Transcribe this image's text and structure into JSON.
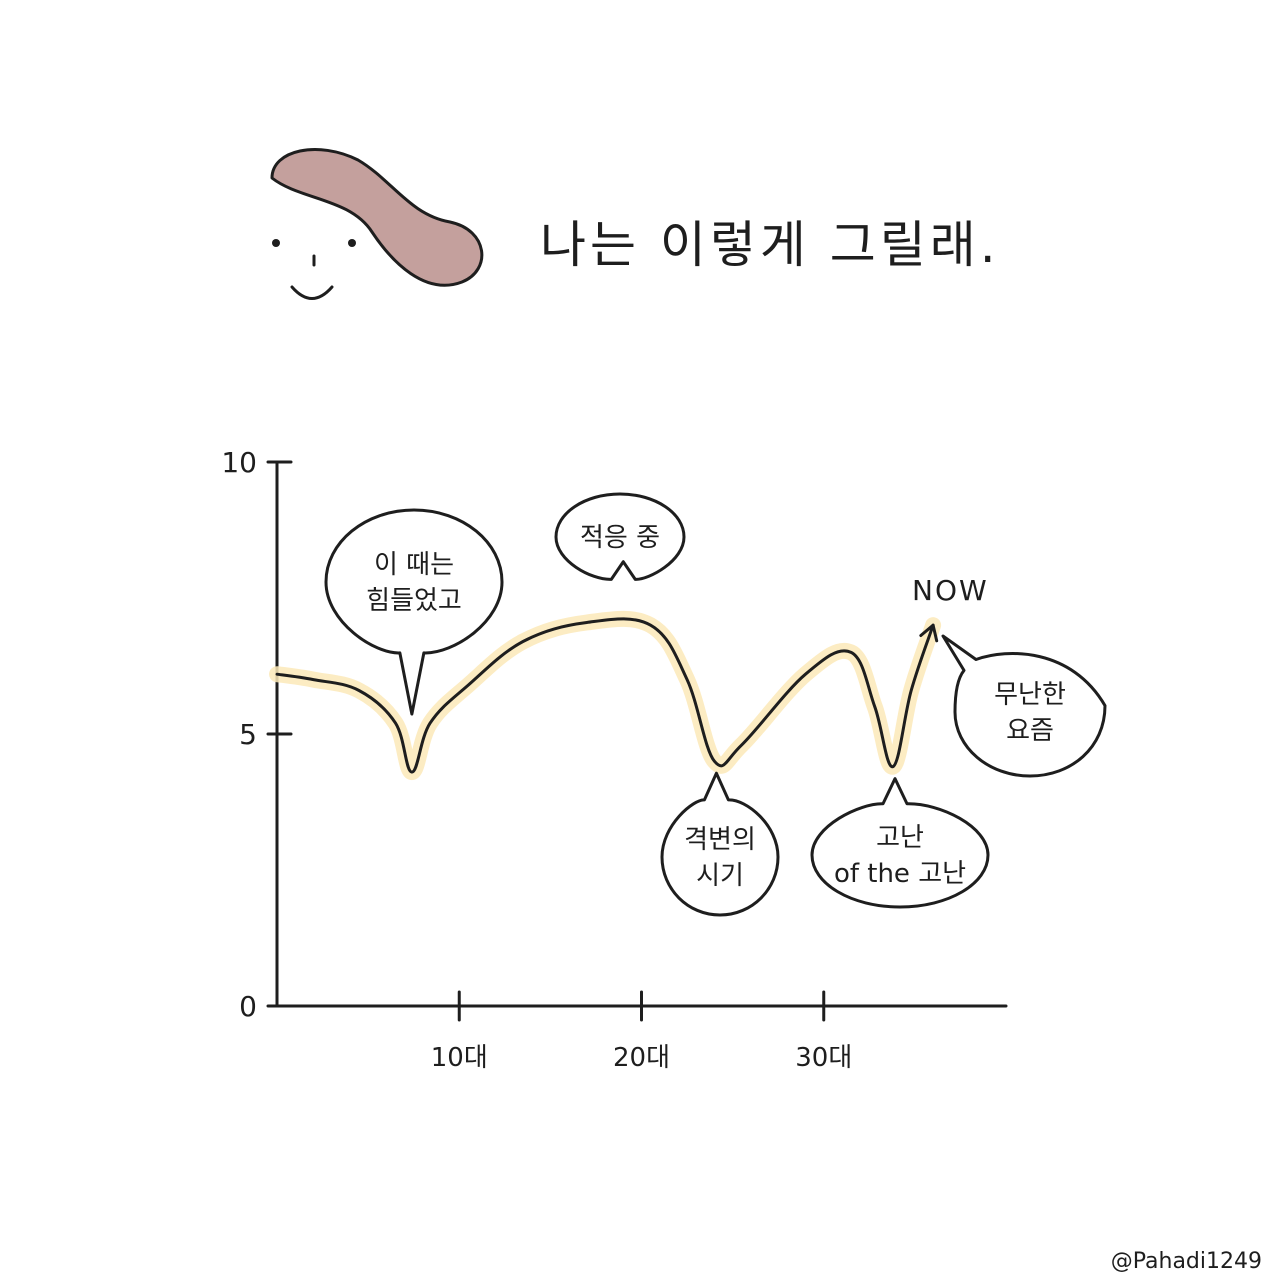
{
  "title": "나는 이렇게 그릴래.",
  "signature": "@Pahadi1249",
  "colors": {
    "ink": "#1e1e1e",
    "hair": "#c4a09d",
    "glow": "#fbe9b8"
  },
  "icons": {
    "avatar": "smiling-face-with-hair-icon",
    "now_arrow": "arrow-up-right-icon"
  },
  "chart_data": {
    "type": "line",
    "title": "",
    "xlabel": "",
    "ylabel": "",
    "ylim": [
      0,
      10
    ],
    "yticks": [
      "0",
      "5",
      "10"
    ],
    "categories": [
      "10대",
      "20대",
      "30대"
    ],
    "xlim": [
      0,
      40
    ],
    "series": [
      {
        "points": [
          {
            "x": 0,
            "y": 6.1
          },
          {
            "x": 2.0,
            "y": 6.0
          },
          {
            "x": 4.5,
            "y": 5.8
          },
          {
            "x": 6.5,
            "y": 5.2
          },
          {
            "x": 7.4,
            "y": 4.3
          },
          {
            "x": 8.4,
            "y": 5.2
          },
          {
            "x": 10.5,
            "y": 5.9
          },
          {
            "x": 13.5,
            "y": 6.7
          },
          {
            "x": 17.0,
            "y": 7.05
          },
          {
            "x": 20.5,
            "y": 7.0
          },
          {
            "x": 22.5,
            "y": 6.0
          },
          {
            "x": 24.0,
            "y": 4.5
          },
          {
            "x": 25.5,
            "y": 4.8
          },
          {
            "x": 29.0,
            "y": 6.1
          },
          {
            "x": 31.5,
            "y": 6.5
          },
          {
            "x": 32.8,
            "y": 5.5
          },
          {
            "x": 33.8,
            "y": 4.4
          },
          {
            "x": 34.8,
            "y": 5.8
          },
          {
            "x": 36.0,
            "y": 7.0
          }
        ]
      }
    ],
    "end_marker": "NOW",
    "annotations": [
      {
        "lines": [
          "이 때는",
          "힘들었고"
        ],
        "x": 7.4,
        "y": 4.3
      },
      {
        "lines": [
          "적응 중"
        ],
        "x": 19.0,
        "y": 7.1
      },
      {
        "lines": [
          "격변의",
          "시기"
        ],
        "x": 24.0,
        "y": 4.5
      },
      {
        "lines": [
          "고난",
          "of the 고난"
        ],
        "x": 33.8,
        "y": 4.4
      },
      {
        "lines": [
          "무난한",
          "요즘"
        ],
        "x": 36.0,
        "y": 7.0
      }
    ]
  }
}
